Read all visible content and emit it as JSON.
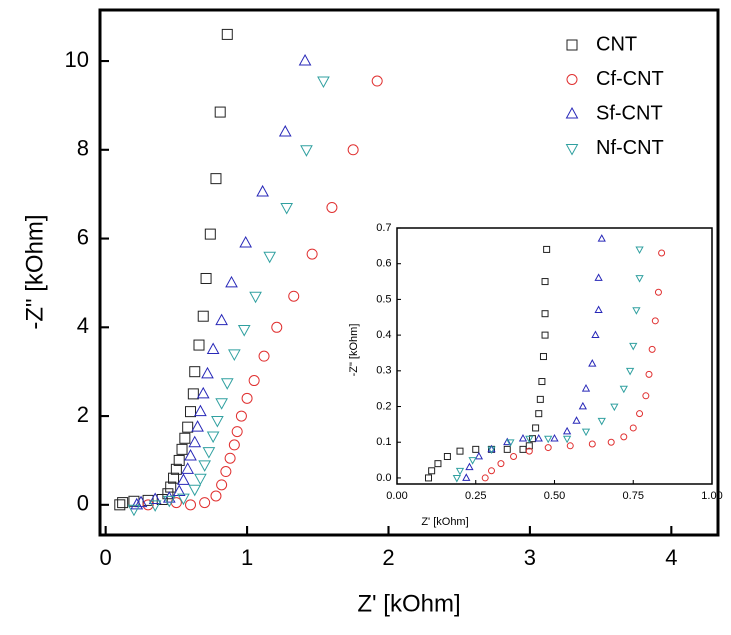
{
  "chart_data": [
    {
      "type": "scatter",
      "xlabel": "Z' [kOhm]",
      "ylabel": "-Z\" [kOhm]",
      "xlim": [
        -0.04,
        4.33
      ],
      "ylim": [
        -0.68,
        11.15
      ],
      "xticks": [
        0,
        1,
        2,
        3,
        4
      ],
      "yticks": [
        0,
        2,
        4,
        6,
        8,
        10
      ],
      "legend": "upper right",
      "series": [
        {
          "name": "CNT",
          "color": "#222222",
          "marker": "square",
          "x": [
            0.86,
            0.81,
            0.78,
            0.74,
            0.71,
            0.69,
            0.66,
            0.63,
            0.62,
            0.6,
            0.58,
            0.56,
            0.54,
            0.52,
            0.5,
            0.48,
            0.46,
            0.44,
            0.4,
            0.3,
            0.2,
            0.12,
            0.1
          ],
          "values": [
            10.6,
            8.85,
            7.35,
            6.1,
            5.1,
            4.25,
            3.6,
            3.0,
            2.5,
            2.1,
            1.75,
            1.5,
            1.25,
            1.0,
            0.8,
            0.6,
            0.4,
            0.25,
            0.12,
            0.1,
            0.08,
            0.05,
            0.0
          ]
        },
        {
          "name": "Cf-CNT",
          "color": "#e03030",
          "marker": "circle",
          "x": [
            1.92,
            1.75,
            1.6,
            1.46,
            1.33,
            1.21,
            1.12,
            1.05,
            1.0,
            0.96,
            0.93,
            0.91,
            0.88,
            0.85,
            0.82,
            0.78,
            0.7,
            0.6,
            0.5,
            0.3
          ],
          "values": [
            9.55,
            8.0,
            6.7,
            5.65,
            4.7,
            4.0,
            3.35,
            2.8,
            2.4,
            2.0,
            1.65,
            1.35,
            1.05,
            0.75,
            0.45,
            0.2,
            0.05,
            0.0,
            0.05,
            0.0
          ]
        },
        {
          "name": "Sf-CNT",
          "color": "#2828b8",
          "marker": "triangle-up",
          "x": [
            1.41,
            1.27,
            1.11,
            0.99,
            0.89,
            0.82,
            0.76,
            0.72,
            0.69,
            0.67,
            0.65,
            0.63,
            0.6,
            0.58,
            0.55,
            0.52,
            0.45,
            0.35,
            0.25,
            0.22
          ],
          "values": [
            10.0,
            8.4,
            7.05,
            5.9,
            5.0,
            4.15,
            3.5,
            2.95,
            2.5,
            2.1,
            1.75,
            1.4,
            1.1,
            0.8,
            0.55,
            0.3,
            0.15,
            0.12,
            0.05,
            0.0
          ]
        },
        {
          "name": "Nf-CNT",
          "color": "#30a0a0",
          "marker": "triangle-down",
          "x": [
            1.54,
            1.42,
            1.28,
            1.16,
            1.06,
            0.98,
            0.91,
            0.86,
            0.82,
            0.79,
            0.76,
            0.73,
            0.7,
            0.67,
            0.63,
            0.55,
            0.45,
            0.35,
            0.2
          ],
          "values": [
            9.55,
            8.0,
            6.7,
            5.6,
            4.7,
            3.95,
            3.4,
            2.75,
            2.3,
            1.9,
            1.55,
            1.2,
            0.9,
            0.6,
            0.35,
            0.15,
            0.1,
            0.0,
            -0.1
          ]
        }
      ]
    },
    {
      "type": "scatter",
      "xlabel": "Z' [kOhm]",
      "ylabel": "-Z\" [kOhm]",
      "xlim": [
        0,
        1
      ],
      "ylim": [
        -0.017,
        0.7
      ],
      "xticks": [
        {
          "value": 0,
          "label": "0.00"
        },
        {
          "value": 0.25,
          "label": "0.25"
        },
        {
          "value": 0.5,
          "label": "0.50"
        },
        {
          "value": 0.75,
          "label": "0.75"
        },
        {
          "value": 1,
          "label": "1.00"
        }
      ],
      "yticks": [
        {
          "value": 0,
          "label": "0.0"
        },
        0.1,
        0.2,
        0.3,
        0.4,
        0.5,
        0.6,
        0.7
      ],
      "series": [
        {
          "color": "#222222",
          "marker": "square",
          "x": [
            0.1,
            0.11,
            0.13,
            0.16,
            0.2,
            0.25,
            0.3,
            0.35,
            0.4,
            0.42,
            0.43,
            0.44,
            0.45,
            0.455,
            0.46,
            0.465,
            0.47,
            0.47,
            0.47,
            0.475
          ],
          "values": [
            0,
            0.02,
            0.04,
            0.06,
            0.075,
            0.08,
            0.08,
            0.08,
            0.08,
            0.09,
            0.11,
            0.14,
            0.18,
            0.22,
            0.27,
            0.34,
            0.4,
            0.46,
            0.55,
            0.64
          ]
        },
        {
          "color": "#e03030",
          "marker": "circle",
          "x": [
            0.28,
            0.3,
            0.33,
            0.37,
            0.42,
            0.48,
            0.55,
            0.62,
            0.68,
            0.72,
            0.75,
            0.77,
            0.79,
            0.8,
            0.81,
            0.82,
            0.83,
            0.84
          ],
          "values": [
            0,
            0.02,
            0.04,
            0.06,
            0.075,
            0.085,
            0.09,
            0.095,
            0.1,
            0.115,
            0.14,
            0.18,
            0.23,
            0.29,
            0.36,
            0.44,
            0.52,
            0.63
          ]
        },
        {
          "color": "#2828b8",
          "marker": "triangle-up",
          "x": [
            0.22,
            0.23,
            0.26,
            0.3,
            0.35,
            0.4,
            0.45,
            0.5,
            0.54,
            0.57,
            0.59,
            0.6,
            0.62,
            0.63,
            0.64,
            0.64,
            0.65
          ],
          "values": [
            0,
            0.03,
            0.06,
            0.08,
            0.1,
            0.11,
            0.11,
            0.11,
            0.13,
            0.16,
            0.2,
            0.25,
            0.32,
            0.4,
            0.47,
            0.56,
            0.67
          ]
        },
        {
          "color": "#30a0a0",
          "marker": "triangle-down",
          "x": [
            0.19,
            0.2,
            0.24,
            0.3,
            0.36,
            0.42,
            0.48,
            0.54,
            0.6,
            0.65,
            0.69,
            0.72,
            0.74,
            0.75,
            0.76,
            0.77,
            0.77
          ],
          "values": [
            0,
            0.02,
            0.05,
            0.08,
            0.1,
            0.11,
            0.11,
            0.11,
            0.13,
            0.16,
            0.2,
            0.25,
            0.3,
            0.37,
            0.47,
            0.56,
            0.64
          ]
        }
      ]
    }
  ]
}
